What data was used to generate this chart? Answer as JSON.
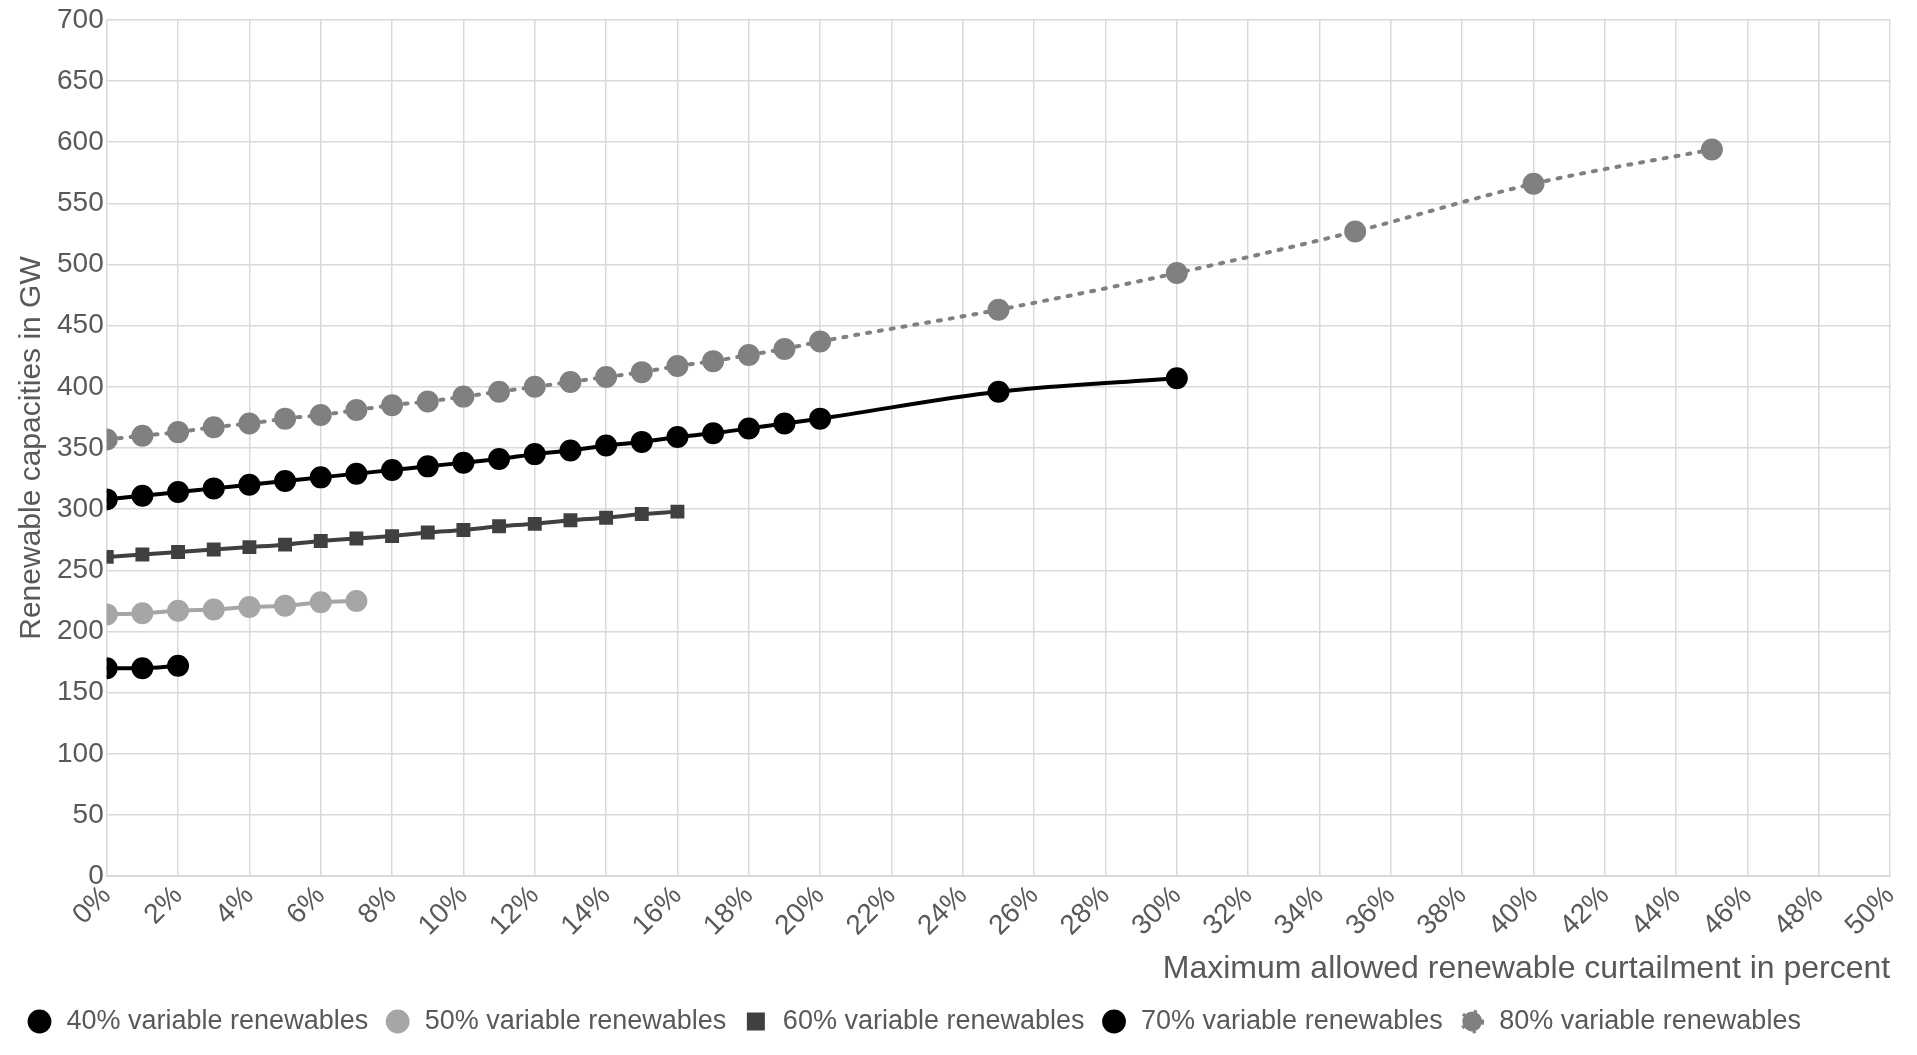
{
  "chart_data": {
    "type": "line",
    "xlabel": "Maximum allowed renewable curtailment in percent",
    "ylabel": "Renewable capacities in GW",
    "xlim": [
      0,
      50
    ],
    "xticks": [
      {
        "value": 0,
        "label": "0%"
      },
      {
        "value": 2,
        "label": "2%"
      },
      {
        "value": 4,
        "label": "4%"
      },
      {
        "value": 6,
        "label": "6%"
      },
      {
        "value": 8,
        "label": "8%"
      },
      {
        "value": 10,
        "label": "10%"
      },
      {
        "value": 12,
        "label": "12%"
      },
      {
        "value": 14,
        "label": "14%"
      },
      {
        "value": 16,
        "label": "16%"
      },
      {
        "value": 18,
        "label": "18%"
      },
      {
        "value": 20,
        "label": "20%"
      },
      {
        "value": 22,
        "label": "22%"
      },
      {
        "value": 24,
        "label": "24%"
      },
      {
        "value": 26,
        "label": "26%"
      },
      {
        "value": 28,
        "label": "28%"
      },
      {
        "value": 30,
        "label": "30%"
      },
      {
        "value": 32,
        "label": "32%"
      },
      {
        "value": 34,
        "label": "34%"
      },
      {
        "value": 36,
        "label": "36%"
      },
      {
        "value": 38,
        "label": "38%"
      },
      {
        "value": 40,
        "label": "40%"
      },
      {
        "value": 42,
        "label": "42%"
      },
      {
        "value": 44,
        "label": "44%"
      },
      {
        "value": 46,
        "label": "46%"
      },
      {
        "value": 48,
        "label": "48%"
      },
      {
        "value": 50,
        "label": "50%"
      }
    ],
    "ylim": [
      0,
      700
    ],
    "yticks": [
      0,
      50,
      100,
      150,
      200,
      250,
      300,
      350,
      400,
      450,
      500,
      550,
      600,
      650,
      700
    ],
    "grid": true,
    "legend": "bottom",
    "series": [
      {
        "name": "40% variable renewables",
        "color": "#000000",
        "marker": "circle",
        "line_style": "solid",
        "x": [
          0,
          1,
          2
        ],
        "values": [
          170,
          170,
          172
        ]
      },
      {
        "name": "50% variable renewables",
        "color": "#a6a6a6",
        "marker": "circle",
        "line_style": "solid",
        "x": [
          0,
          1,
          2,
          3,
          4,
          5,
          6,
          7
        ],
        "values": [
          214,
          215,
          217,
          218,
          220,
          221,
          224,
          225
        ]
      },
      {
        "name": "60% variable renewables",
        "color": "#404040",
        "marker": "square",
        "line_style": "solid",
        "x": [
          0,
          1,
          2,
          3,
          4,
          5,
          6,
          7,
          8,
          9,
          10,
          11,
          12,
          13,
          14,
          15,
          16
        ],
        "values": [
          261,
          263,
          265,
          267,
          269,
          271,
          274,
          276,
          278,
          281,
          283,
          286,
          288,
          291,
          293,
          296,
          298
        ]
      },
      {
        "name": "70% variable renewables",
        "color": "#000000",
        "marker": "circle",
        "line_style": "solid",
        "x": [
          0,
          1,
          2,
          3,
          4,
          5,
          6,
          7,
          8,
          9,
          10,
          11,
          12,
          13,
          14,
          15,
          16,
          17,
          18,
          19,
          20,
          25,
          30
        ],
        "values": [
          308,
          311,
          314,
          317,
          320,
          323,
          326,
          329,
          332,
          335,
          338,
          341,
          345,
          348,
          352,
          355,
          359,
          362,
          366,
          370,
          374,
          396,
          407
        ]
      },
      {
        "name": "80% variable renewables",
        "color": "#808080",
        "marker": "circle",
        "line_style": "dotted",
        "x": [
          0,
          1,
          2,
          3,
          4,
          5,
          6,
          7,
          8,
          9,
          10,
          11,
          12,
          13,
          14,
          15,
          16,
          17,
          18,
          19,
          20,
          25,
          30,
          35,
          40,
          45
        ],
        "values": [
          357,
          360,
          363,
          367,
          370,
          374,
          377,
          381,
          385,
          388,
          392,
          396,
          400,
          404,
          408,
          412,
          417,
          421,
          426,
          431,
          437,
          463,
          493,
          527,
          566,
          594
        ]
      }
    ]
  }
}
